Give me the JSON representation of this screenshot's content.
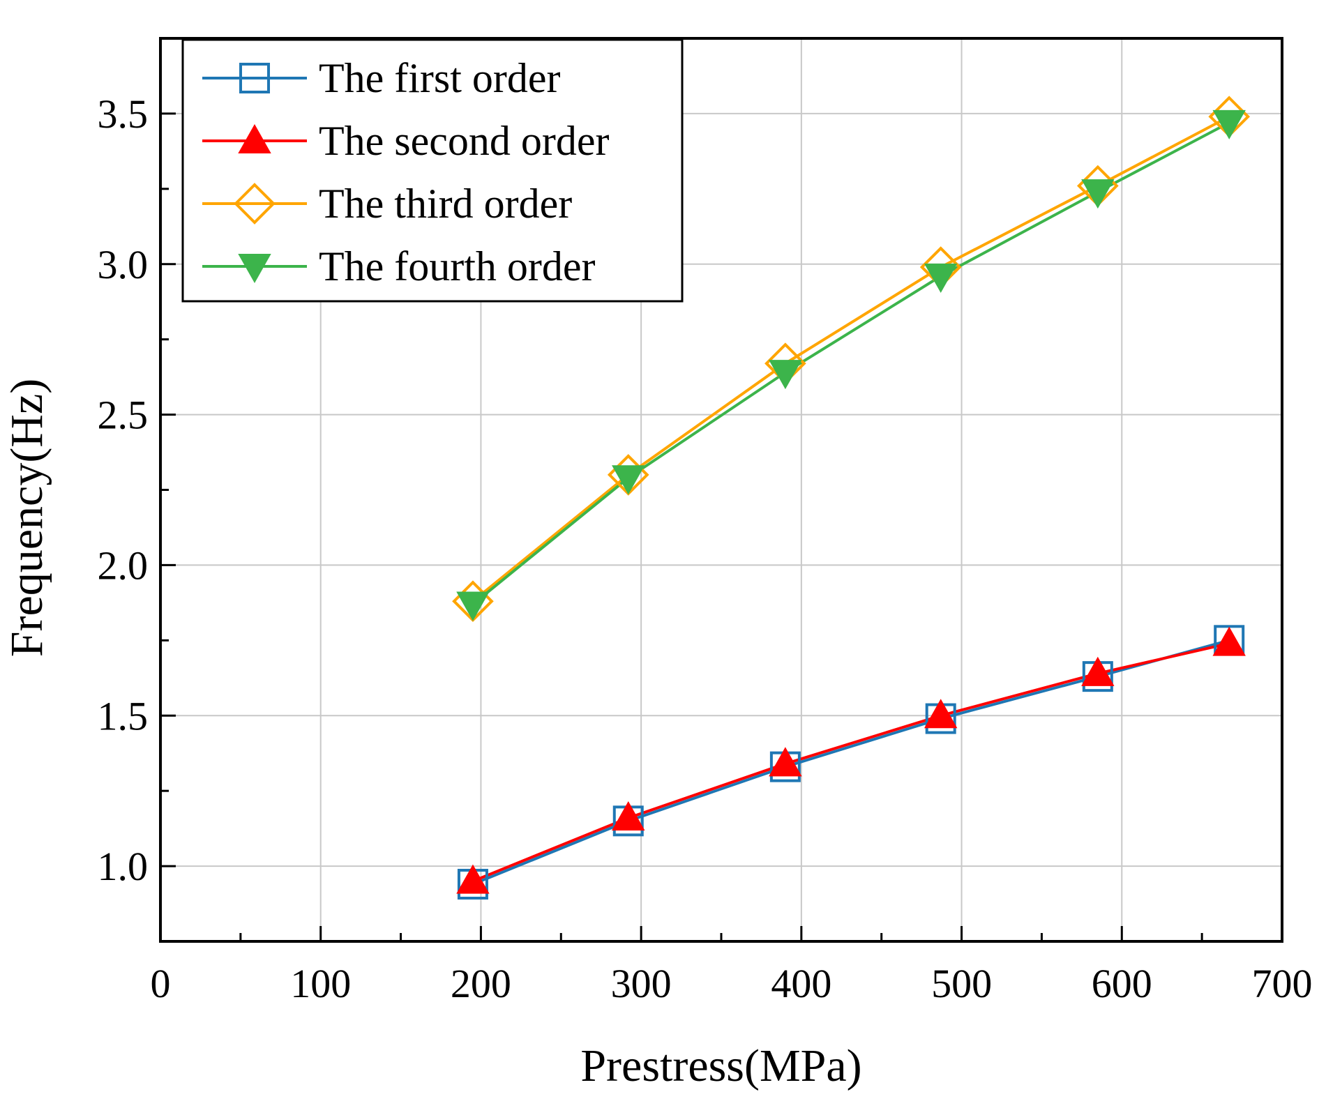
{
  "chart_data": {
    "type": "line",
    "title": "",
    "xlabel": "Prestress(MPa)",
    "ylabel": "Frequency(Hz)",
    "xlim": [
      0,
      700
    ],
    "ylim": [
      0.75,
      3.75
    ],
    "xticks": [
      0,
      100,
      200,
      300,
      400,
      500,
      600,
      700
    ],
    "yticks": [
      1.0,
      1.5,
      2.0,
      2.5,
      3.0,
      3.5
    ],
    "ytick_labels": [
      "1.0",
      "1.5",
      "2.0",
      "2.5",
      "3.0",
      "3.5"
    ],
    "grid": true,
    "legend_position": "top-left",
    "x": [
      195,
      292,
      390,
      487,
      585,
      667
    ],
    "series": [
      {
        "name": "The first order",
        "values": [
          0.94,
          1.15,
          1.33,
          1.49,
          1.63,
          1.75
        ],
        "color": "#1f77b4",
        "marker": "open-square"
      },
      {
        "name": "The second order",
        "values": [
          0.95,
          1.16,
          1.34,
          1.5,
          1.64,
          1.74
        ],
        "color": "#ff0000",
        "marker": "filled-triangle-up"
      },
      {
        "name": "The third order",
        "values": [
          1.88,
          2.3,
          2.67,
          2.99,
          3.26,
          3.49
        ],
        "color": "#ffa500",
        "marker": "open-diamond"
      },
      {
        "name": "The fourth order",
        "values": [
          1.87,
          2.29,
          2.64,
          2.96,
          3.24,
          3.47
        ],
        "color": "#3cb44b",
        "marker": "filled-triangle-down"
      }
    ]
  }
}
